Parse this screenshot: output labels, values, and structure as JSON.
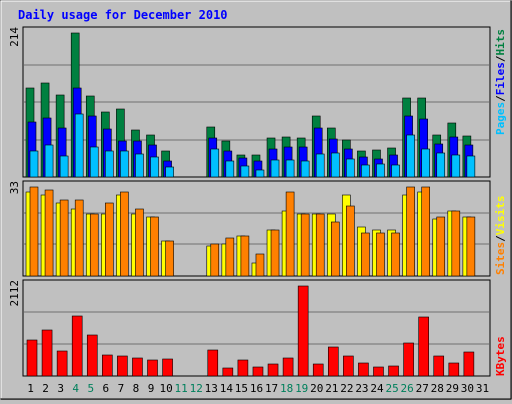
{
  "title": "Daily usage for December 2010",
  "colors": {
    "background": "#c0c0c0",
    "title": "#0000ff",
    "hits": "#008040",
    "files": "#0000ff",
    "pages": "#00c0ff",
    "visits": "#ffff00",
    "sites": "#ff8000",
    "kbytes": "#ff0000",
    "weekend_label": "#00805c",
    "weekday_label": "#000000",
    "separator": "#6f6f6f"
  },
  "chart_data": [
    {
      "type": "bar",
      "ymax_label": "214",
      "ylim": [
        0,
        214
      ],
      "legend": [
        "Pages",
        "Files",
        "Hits"
      ],
      "categories": [
        "1",
        "2",
        "3",
        "4",
        "5",
        "6",
        "7",
        "8",
        "9",
        "10",
        "11",
        "12",
        "13",
        "14",
        "15",
        "16",
        "17",
        "18",
        "19",
        "20",
        "21",
        "22",
        "23",
        "24",
        "25",
        "26",
        "27",
        "28",
        "29",
        "30",
        "31"
      ],
      "series": [
        {
          "name": "Hits",
          "values": [
            133,
            140,
            122,
            214,
            120,
            97,
            101,
            70,
            62,
            38,
            0,
            0,
            75,
            54,
            33,
            33,
            58,
            60,
            58,
            90,
            73,
            55,
            39,
            40,
            43,
            117,
            118,
            63,
            80,
            61,
            0
          ]
        },
        {
          "name": "Files",
          "values": [
            81,
            87,
            73,
            132,
            90,
            71,
            54,
            53,
            48,
            24,
            0,
            0,
            58,
            39,
            28,
            24,
            41,
            44,
            45,
            73,
            56,
            42,
            29,
            27,
            32,
            90,
            86,
            49,
            59,
            47,
            0
          ]
        },
        {
          "name": "Pages",
          "values": [
            39,
            47,
            31,
            94,
            45,
            39,
            38,
            34,
            29,
            15,
            0,
            0,
            41,
            24,
            17,
            11,
            25,
            25,
            24,
            34,
            36,
            27,
            18,
            19,
            18,
            62,
            42,
            35,
            32,
            31,
            0
          ]
        }
      ]
    },
    {
      "type": "bar",
      "ymax_label": "33",
      "ylim": [
        0,
        33
      ],
      "legend": [
        "Sites",
        "Visits"
      ],
      "categories": [
        "1",
        "2",
        "3",
        "4",
        "5",
        "6",
        "7",
        "8",
        "9",
        "10",
        "11",
        "12",
        "13",
        "14",
        "15",
        "16",
        "17",
        "18",
        "19",
        "20",
        "21",
        "22",
        "23",
        "24",
        "25",
        "26",
        "27",
        "28",
        "29",
        "30",
        "31"
      ],
      "series": [
        {
          "name": "Visits",
          "values": [
            31,
            30,
            27,
            25,
            23,
            23,
            30,
            23,
            22,
            13,
            0,
            0,
            11,
            12,
            15,
            5,
            17,
            24,
            23,
            23,
            23,
            30,
            18,
            17,
            17,
            30,
            31,
            21,
            24,
            22,
            0
          ]
        },
        {
          "name": "Sites",
          "values": [
            33,
            32,
            28,
            28,
            23,
            27,
            31,
            25,
            22,
            13,
            0,
            0,
            12,
            14,
            15,
            8,
            17,
            31,
            23,
            23,
            20,
            26,
            16,
            16,
            16,
            33,
            33,
            22,
            24,
            22,
            0
          ]
        }
      ]
    },
    {
      "type": "bar",
      "ymax_label": "2112",
      "ylim": [
        0,
        2112
      ],
      "legend": [
        "KBytes"
      ],
      "categories": [
        "1",
        "2",
        "3",
        "4",
        "5",
        "6",
        "7",
        "8",
        "9",
        "10",
        "11",
        "12",
        "13",
        "14",
        "15",
        "16",
        "17",
        "18",
        "19",
        "20",
        "21",
        "22",
        "23",
        "24",
        "25",
        "26",
        "27",
        "28",
        "29",
        "30",
        "31"
      ],
      "series": [
        {
          "name": "KBytes",
          "values": [
            840,
            1080,
            590,
            1410,
            960,
            490,
            470,
            430,
            370,
            400,
            0,
            0,
            610,
            180,
            370,
            200,
            280,
            420,
            2112,
            270,
            690,
            480,
            300,
            220,
            230,
            770,
            1390,
            460,
            300,
            560,
            0
          ]
        }
      ]
    }
  ],
  "x_labels": [
    {
      "text": "1",
      "weekend": false
    },
    {
      "text": "2",
      "weekend": false
    },
    {
      "text": "3",
      "weekend": false
    },
    {
      "text": "4",
      "weekend": true
    },
    {
      "text": "5",
      "weekend": true
    },
    {
      "text": "6",
      "weekend": false
    },
    {
      "text": "7",
      "weekend": false
    },
    {
      "text": "8",
      "weekend": false
    },
    {
      "text": "9",
      "weekend": false
    },
    {
      "text": "10",
      "weekend": false
    },
    {
      "text": "11",
      "weekend": true
    },
    {
      "text": "12",
      "weekend": true
    },
    {
      "text": "13",
      "weekend": false
    },
    {
      "text": "14",
      "weekend": false
    },
    {
      "text": "15",
      "weekend": false
    },
    {
      "text": "16",
      "weekend": false
    },
    {
      "text": "17",
      "weekend": false
    },
    {
      "text": "18",
      "weekend": true
    },
    {
      "text": "19",
      "weekend": true
    },
    {
      "text": "20",
      "weekend": false
    },
    {
      "text": "21",
      "weekend": false
    },
    {
      "text": "22",
      "weekend": false
    },
    {
      "text": "23",
      "weekend": false
    },
    {
      "text": "24",
      "weekend": false
    },
    {
      "text": "25",
      "weekend": true
    },
    {
      "text": "26",
      "weekend": true
    },
    {
      "text": "27",
      "weekend": false
    },
    {
      "text": "28",
      "weekend": false
    },
    {
      "text": "29",
      "weekend": false
    },
    {
      "text": "30",
      "weekend": false
    },
    {
      "text": "31",
      "weekend": false
    }
  ]
}
